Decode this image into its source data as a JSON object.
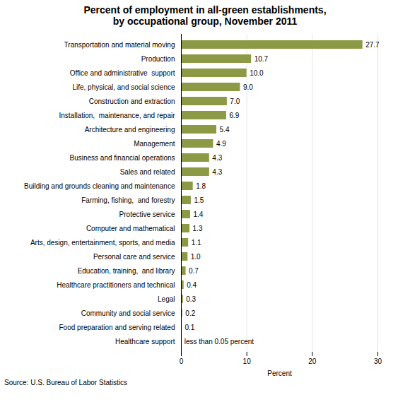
{
  "chart_data": {
    "type": "bar",
    "orientation": "horizontal",
    "title": "Percent of employment in all-green establishments,\nby occupational group, November 2011",
    "categories": [
      "Transportation and material moving",
      "Production",
      "Office and administrative  support",
      "Life, physical, and social science",
      "Construction and extraction",
      "Installation,  maintenance, and repair",
      "Architecture and engineering",
      "Management",
      "Business and financial operations",
      "Sales and related",
      "Building and grounds cleaning and maintenance",
      "Farming, fishing,  and forestry",
      "Protective service",
      "Computer and mathematical",
      "Arts, design, entertainment, sports, and media",
      "Personal care and service",
      "Education, training,  and library",
      "Healthcare practitioners and technical",
      "Legal",
      "Community and social service",
      "Food preparation and serving related",
      "Healthcare support"
    ],
    "values": [
      27.7,
      10.7,
      10.0,
      9.0,
      7.0,
      6.9,
      5.4,
      4.9,
      4.3,
      4.3,
      1.8,
      1.5,
      1.4,
      1.3,
      1.1,
      1.0,
      0.7,
      0.4,
      0.3,
      0.2,
      0.1,
      0.02
    ],
    "value_labels": [
      "27.7",
      "10.7",
      "10.0",
      "9.0",
      "7.0",
      "6.9",
      "5.4",
      "4.9",
      "4.3",
      "4.3",
      "1.8",
      "1.5",
      "1.4",
      "1.3",
      "1.1",
      "1.0",
      "0.7",
      "0.4",
      "0.3",
      "0.2",
      "0.1",
      "less than 0.05 percent"
    ],
    "data_labels": true,
    "color": "#8C9A45",
    "xlabel": "Percent",
    "xlim": [
      0,
      30
    ],
    "xticks": [
      0,
      10,
      20,
      30
    ],
    "grid": true,
    "annotations": [
      "Source: U.S. Bureau of Labor Statistics"
    ]
  }
}
